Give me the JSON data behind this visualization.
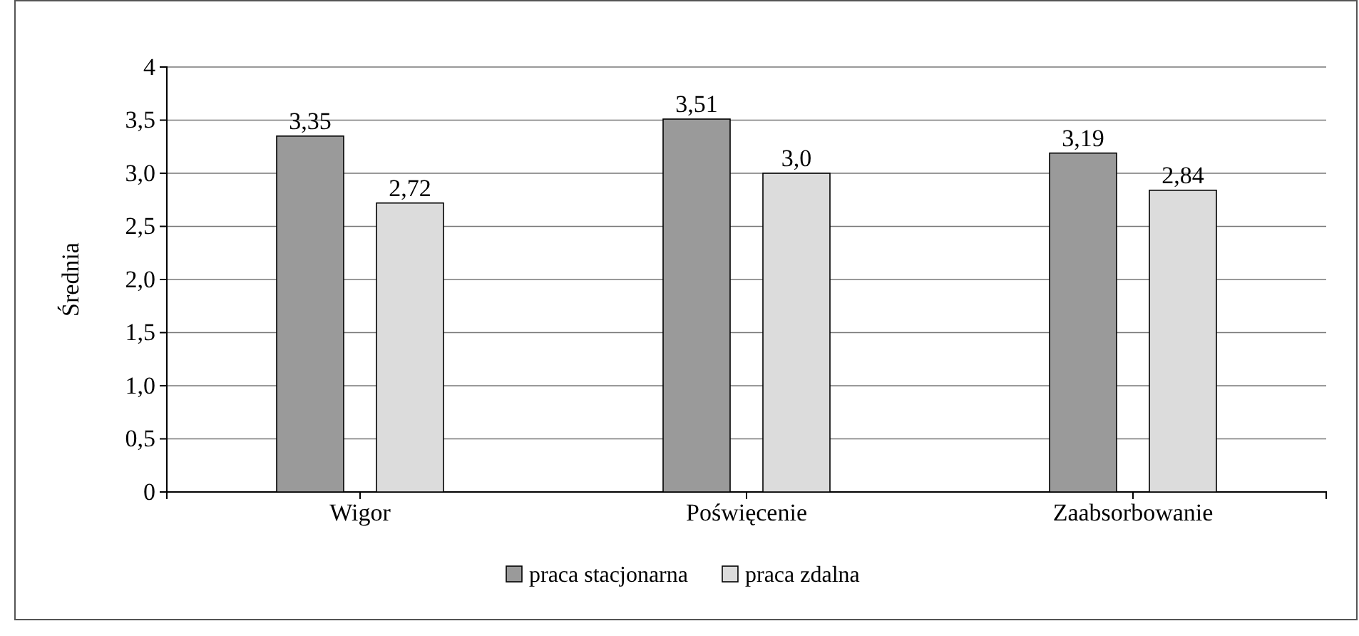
{
  "chart_data": {
    "type": "bar",
    "ylabel": "Średnia",
    "categories": [
      "Wigor",
      "Poświęcenie",
      "Zaabsorbowanie"
    ],
    "series": [
      {
        "name": "praca stacjonarna",
        "color": "#9a9a9a",
        "values": [
          3.35,
          3.51,
          3.19
        ],
        "value_labels": [
          "3,35",
          "3,51",
          "3,19"
        ]
      },
      {
        "name": "praca zdalna",
        "color": "#dcdcdc",
        "values": [
          2.72,
          3.0,
          2.84
        ],
        "value_labels": [
          "2,72",
          "3,0",
          "2,84"
        ]
      }
    ],
    "ylim": [
      0,
      4
    ],
    "yticks": [
      0,
      {
        "value": 0.5,
        "label": "0,5"
      },
      {
        "value": 1,
        "label": "1,0"
      },
      {
        "value": 1.5,
        "label": "1,5"
      },
      {
        "value": 2,
        "label": "2,0"
      },
      {
        "value": 2.5,
        "label": "2,5"
      },
      {
        "value": 3,
        "label": "3,0"
      },
      {
        "value": 3.5,
        "label": "3,5"
      },
      4
    ],
    "grid": "y",
    "legend": "bottom"
  }
}
